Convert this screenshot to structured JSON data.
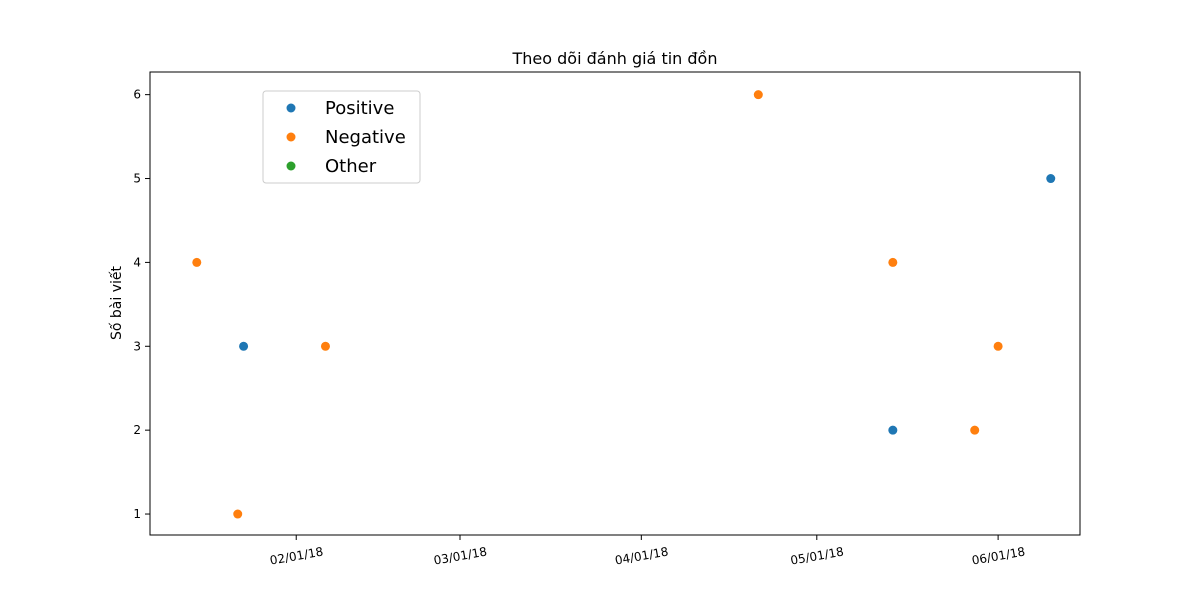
{
  "chart_data": {
    "type": "scatter",
    "title": "Theo dõi đánh giá tin đồn",
    "xlabel": "",
    "ylabel": "Số bài viết",
    "x_axis_type": "date",
    "xlim": [
      "2018-01-07",
      "2018-06-15"
    ],
    "ylim": [
      0.75,
      6.27
    ],
    "x_ticks": [
      {
        "value": "2018-02-01",
        "label": "02/01/18"
      },
      {
        "value": "2018-03-01",
        "label": "03/01/18"
      },
      {
        "value": "2018-04-01",
        "label": "04/01/18"
      },
      {
        "value": "2018-05-01",
        "label": "05/01/18"
      },
      {
        "value": "2018-06-01",
        "label": "06/01/18"
      }
    ],
    "y_ticks": [
      1,
      2,
      3,
      4,
      5,
      6
    ],
    "grid": false,
    "legend_position": "top-left",
    "series": [
      {
        "name": "Positive",
        "color": "#1f77b4",
        "points": [
          {
            "x": "2018-01-23",
            "y": 3
          },
          {
            "x": "2018-05-14",
            "y": 2
          },
          {
            "x": "2018-06-10",
            "y": 5
          }
        ]
      },
      {
        "name": "Negative",
        "color": "#ff7f0e",
        "points": [
          {
            "x": "2018-01-15",
            "y": 4
          },
          {
            "x": "2018-01-22",
            "y": 1
          },
          {
            "x": "2018-02-06",
            "y": 3
          },
          {
            "x": "2018-04-21",
            "y": 6
          },
          {
            "x": "2018-05-14",
            "y": 4
          },
          {
            "x": "2018-05-28",
            "y": 2
          },
          {
            "x": "2018-06-01",
            "y": 3
          }
        ]
      },
      {
        "name": "Other",
        "color": "#2ca02c",
        "points": []
      }
    ]
  }
}
